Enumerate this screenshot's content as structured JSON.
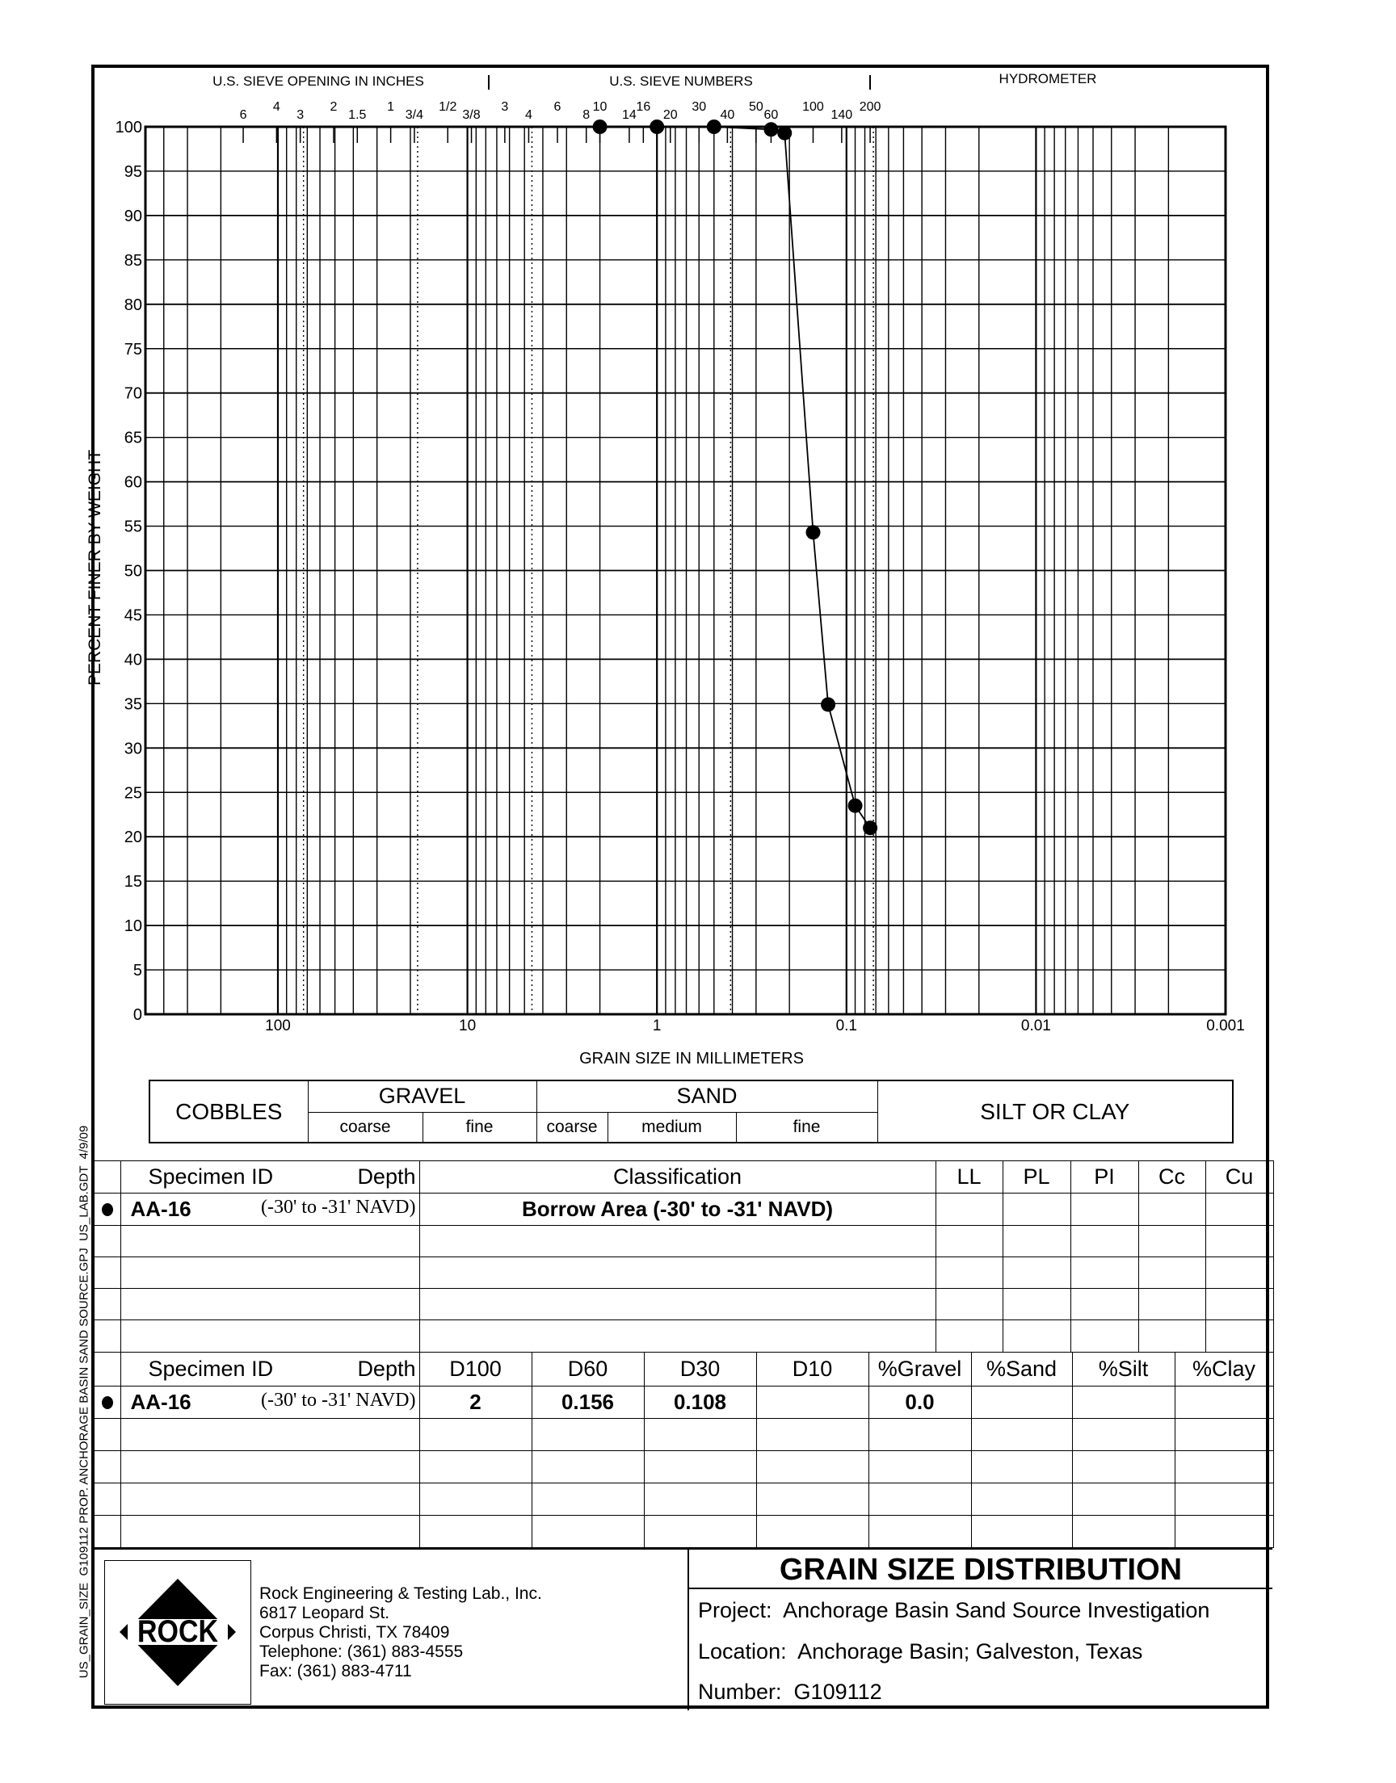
{
  "header": {
    "sieve_inches_label": "U.S. SIEVE OPENING IN INCHES",
    "sieve_numbers_label": "U.S. SIEVE NUMBERS",
    "hydrometer_label": "HYDROMETER",
    "sieve_inch_ticks": [
      "6",
      "4",
      "3",
      "2",
      "1.5",
      "1",
      "3/4",
      "1/2",
      "3/8"
    ],
    "sieve_number_ticks": [
      "3",
      "4",
      "6",
      "8",
      "10",
      "14",
      "16",
      "20",
      "30",
      "40",
      "50",
      "60",
      "100",
      "140",
      "200"
    ]
  },
  "chart_data": {
    "type": "line",
    "title": "GRAIN SIZE DISTRIBUTION",
    "xlabel": "GRAIN SIZE IN MILLIMETERS",
    "ylabel": "PERCENT FINER BY WEIGHT",
    "x_scale": "log",
    "x_reversed": true,
    "xlim": [
      500,
      0.001
    ],
    "ylim": [
      0,
      100
    ],
    "grid": true,
    "x_tick_labels": [
      "100",
      "10",
      "1",
      "0.1",
      "0.01",
      "0.001"
    ],
    "y_tick_labels": [
      "0",
      "5",
      "10",
      "15",
      "20",
      "25",
      "30",
      "35",
      "40",
      "45",
      "50",
      "55",
      "60",
      "65",
      "70",
      "75",
      "80",
      "85",
      "90",
      "95",
      "100"
    ],
    "series": [
      {
        "name": "AA-16",
        "marker": "filled-circle",
        "x": [
          2.0,
          1.0,
          0.5,
          0.25,
          0.212,
          0.15,
          0.125,
          0.09,
          0.075
        ],
        "y": [
          100,
          100,
          100,
          99.7,
          99.3,
          54.3,
          34.9,
          23.5,
          21.0
        ]
      }
    ]
  },
  "soil_classes": {
    "cobbles": "COBBLES",
    "gravel": "GRAVEL",
    "sand": "SAND",
    "silt_clay": "SILT OR CLAY",
    "gravel_coarse": "coarse",
    "gravel_fine": "fine",
    "sand_coarse": "coarse",
    "sand_medium": "medium",
    "sand_fine": "fine"
  },
  "classification_table": {
    "headers": {
      "specimen": "Specimen ID",
      "depth": "Depth",
      "classification": "Classification",
      "ll": "LL",
      "pl": "PL",
      "pi": "PI",
      "cc": "Cc",
      "cu": "Cu"
    },
    "rows": [
      {
        "specimen": "AA-16",
        "depth": "(-30' to -31' NAVD)",
        "classification": "Borrow Area (-30' to -31' NAVD)",
        "ll": "",
        "pl": "",
        "pi": "",
        "cc": "",
        "cu": ""
      }
    ]
  },
  "gradation_table": {
    "headers": {
      "specimen": "Specimen ID",
      "depth": "Depth",
      "d100": "D100",
      "d60": "D60",
      "d30": "D30",
      "d10": "D10",
      "gravel": "%Gravel",
      "sand": "%Sand",
      "silt": "%Silt",
      "clay": "%Clay"
    },
    "rows": [
      {
        "specimen": "AA-16",
        "depth": "(-30' to -31' NAVD)",
        "d100": "2",
        "d60": "0.156",
        "d30": "0.108",
        "d10": "",
        "gravel": "0.0",
        "sand": "",
        "silt": "",
        "clay": ""
      }
    ]
  },
  "footer": {
    "logo_text": "ROCK",
    "company": "Rock Engineering & Testing Lab., Inc.",
    "street": "6817 Leopard St.",
    "city": "Corpus Christi, TX 78409",
    "telephone": "Telephone:  (361) 883-4555",
    "fax": "Fax:  (361) 883-4711",
    "title": "GRAIN SIZE DISTRIBUTION",
    "project_label": "Project:",
    "project": "Anchorage Basin Sand Source Investigation",
    "location_label": "Location:",
    "location": "Anchorage Basin; Galveston, Texas",
    "number_label": "Number:",
    "number": "G109112"
  },
  "side_label": "US_GRAIN_SIZE  G109112 PROP. ANCHORAGE BASIN SAND SOURCE.GPJ  US_LAB.GDT  4/9/09"
}
